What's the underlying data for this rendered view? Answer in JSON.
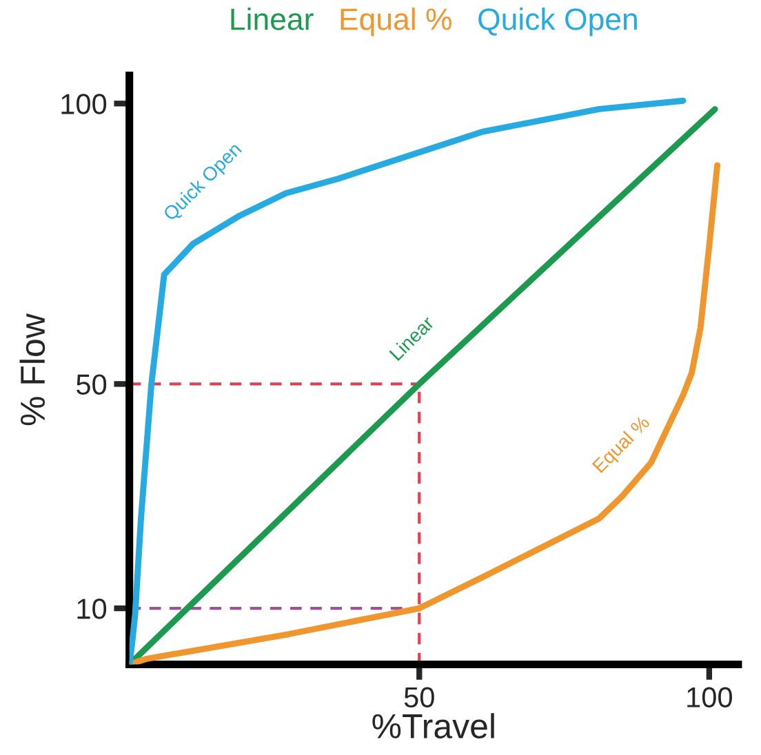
{
  "chart_data": {
    "type": "line",
    "xlabel": "%Travel",
    "ylabel": "% Flow",
    "series": [
      {
        "name": "Linear",
        "color": "#1e9a50",
        "x": [
          0,
          50,
          101
        ],
        "values": [
          0,
          50,
          99
        ]
      },
      {
        "name": "Equal %",
        "color": "#f0962e",
        "x": [
          0,
          3,
          27.5,
          50,
          61,
          81,
          85,
          90,
          95.5,
          97,
          98.5,
          100,
          101.4
        ],
        "values": [
          0,
          1,
          5.4,
          10,
          15.6,
          26,
          30,
          36,
          48,
          52,
          60,
          74.6,
          89
        ]
      },
      {
        "name": "Quick Open",
        "color": "#27a9e1",
        "x": [
          0,
          0.5,
          1,
          2,
          3.8,
          6,
          11,
          19,
          27,
          36,
          61,
          81,
          95.5
        ],
        "values": [
          0,
          4,
          9,
          26,
          50,
          69.5,
          75,
          80,
          84,
          86.6,
          95,
          99,
          100.5
        ]
      }
    ],
    "annotations": [
      "Linear",
      "Equal %",
      "Quick Open"
    ],
    "ref_lines": [
      {
        "axis": "x",
        "value": 50,
        "color": "#e0404f",
        "line_style": "dashed"
      },
      {
        "axis": "y",
        "value": 50,
        "color": "#e0404f",
        "line_style": "dashed"
      },
      {
        "axis": "y",
        "value": 10,
        "color": "#a0509a",
        "line_style": "dashed"
      }
    ],
    "xlim": [
      0,
      105
    ],
    "ylim": [
      0,
      105
    ],
    "xticks": [
      50,
      100
    ],
    "yticks": [
      10,
      50,
      100
    ],
    "grid": false,
    "legend": "top",
    "marker": "none",
    "line_style": "solid"
  }
}
